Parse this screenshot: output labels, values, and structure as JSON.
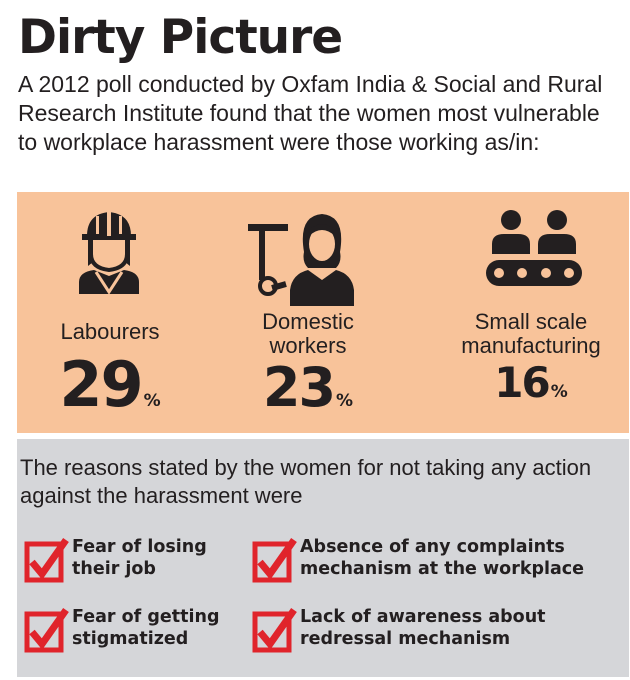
{
  "title": "Dirty Picture",
  "intro": "A 2012 poll conducted by Oxfam India & Social and Rural Research Institute found that the women most vulnerable to workplace harassment were those working as/in:",
  "stats": [
    {
      "label_line1": "Labourers",
      "label_line2": "",
      "value": "29",
      "unit": "%",
      "icon": "construction-worker-icon"
    },
    {
      "label_line1": "Domestic",
      "label_line2": "workers",
      "value": "23",
      "unit": "%",
      "icon": "domestic-worker-icon"
    },
    {
      "label_line1": "Small scale",
      "label_line2": "manufacturing",
      "value": "16",
      "unit": "%",
      "icon": "conveyor-belt-workers-icon"
    }
  ],
  "reasons_intro": "The reasons stated by the women for not taking any action against the harassment were",
  "reasons": [
    {
      "line1": "Fear of losing",
      "line2": "their job"
    },
    {
      "line1": "Absence of any complaints",
      "line2": "mechanism at the workplace"
    },
    {
      "line1": "Fear of getting",
      "line2": "stigmatized"
    },
    {
      "line1": "Lack of awareness about",
      "line2": "redressal mechanism"
    }
  ],
  "colors": {
    "orange_panel": "#f8c39a",
    "grey_panel": "#d5d6d9",
    "check_red": "#e0242b",
    "text": "#231f20"
  }
}
